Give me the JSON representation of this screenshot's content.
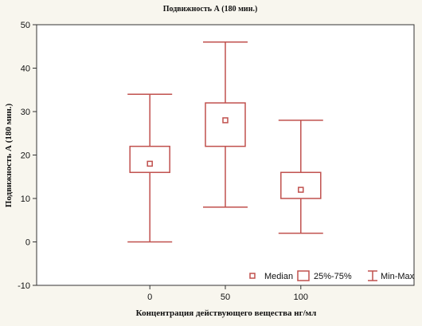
{
  "chart_data": {
    "type": "box",
    "title": "Подвижность А (180 мин.)",
    "xlabel": "Концентрация действующего вещества нг/мл",
    "ylabel": "Подвижность А (180 мин.)",
    "categories": [
      "0",
      "50",
      "100"
    ],
    "boxes": [
      {
        "category": "0",
        "min": 0,
        "q1": 16,
        "median": 18,
        "q3": 22,
        "max": 34
      },
      {
        "category": "50",
        "min": 8,
        "q1": 22,
        "median": 28,
        "q3": 32,
        "max": 46
      },
      {
        "category": "100",
        "min": 2,
        "q1": 10,
        "median": 12,
        "q3": 16,
        "max": 28
      }
    ],
    "ylim": [
      -10,
      50
    ],
    "yticks": [
      -10,
      0,
      10,
      20,
      30,
      40,
      50
    ],
    "grid": false,
    "legend_position": "bottom-right",
    "legend": [
      "Median",
      "25%-75%",
      "Min-Max"
    ],
    "color": "#c0504d"
  }
}
